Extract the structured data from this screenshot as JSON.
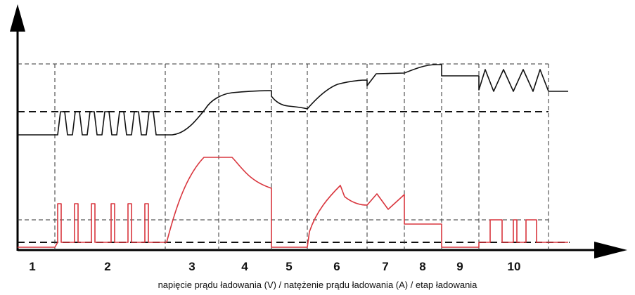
{
  "caption": "napięcie prądu ładowania (V) / natężenie prądu ładowania (A) / etap ładowania",
  "stages": [
    "1",
    "2",
    "3",
    "4",
    "5",
    "6",
    "7",
    "8",
    "9",
    "10"
  ],
  "colors": {
    "voltage": "#111111",
    "current": "#d9363e",
    "grid": "#222222",
    "axis": "#000000"
  }
}
